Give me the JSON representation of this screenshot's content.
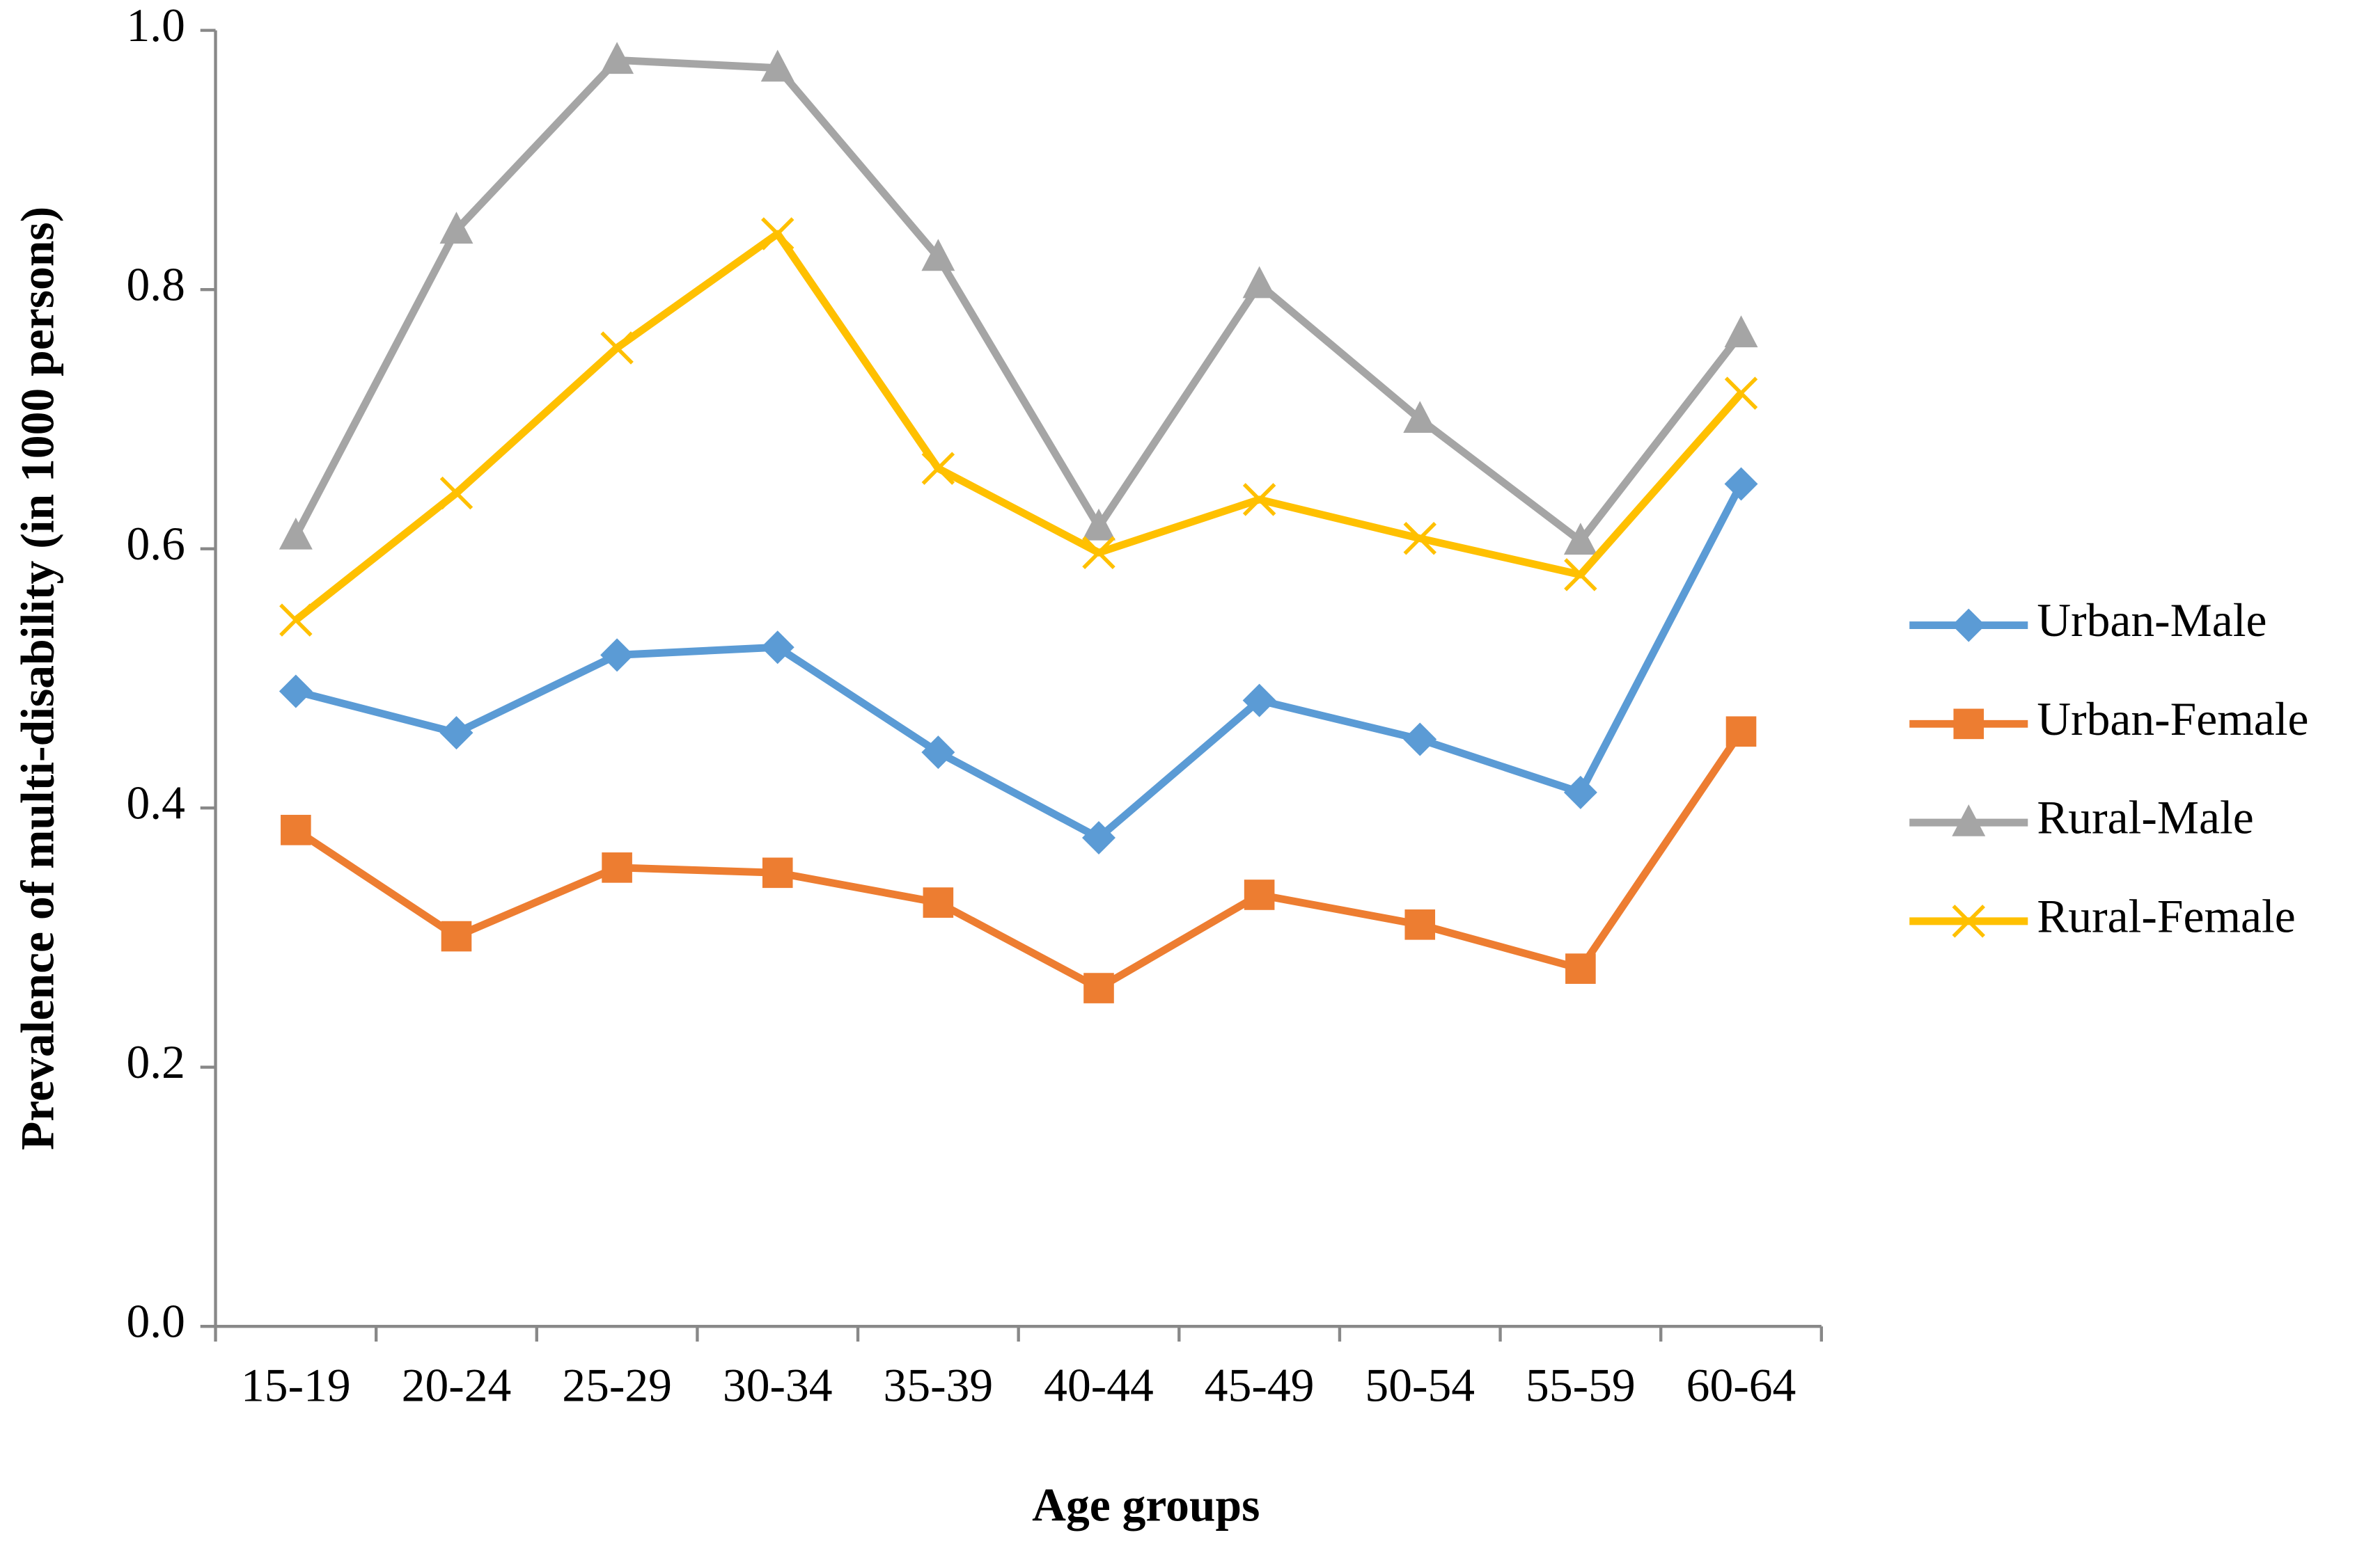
{
  "chart_data": {
    "type": "line",
    "x_label": "Age groups",
    "y_label": "Prevalence of multi-disability (in 1000 persons)",
    "categories": [
      "15-19",
      "20-24",
      "25-29",
      "30-34",
      "35-39",
      "40-44",
      "45-49",
      "50-54",
      "55-59",
      "60-64"
    ],
    "series": [
      {
        "name": "Urban-Male",
        "color": "#5b9bd5",
        "marker": "diamond",
        "values": [
          0.49,
          0.458,
          0.518,
          0.524,
          0.443,
          0.377,
          0.483,
          0.453,
          0.412,
          0.65
        ]
      },
      {
        "name": "Urban-Female",
        "color": "#ed7d31",
        "marker": "square",
        "values": [
          0.383,
          0.301,
          0.354,
          0.35,
          0.327,
          0.261,
          0.333,
          0.31,
          0.276,
          0.459
        ]
      },
      {
        "name": "Rural-Male",
        "color": "#a5a5a5",
        "marker": "triangle",
        "values": [
          0.61,
          0.846,
          0.977,
          0.971,
          0.825,
          0.617,
          0.804,
          0.7,
          0.606,
          0.766
        ]
      },
      {
        "name": "Rural-Female",
        "color": "#ffc000",
        "marker": "x",
        "values": [
          0.545,
          0.643,
          0.755,
          0.843,
          0.662,
          0.597,
          0.638,
          0.608,
          0.58,
          0.72
        ]
      }
    ],
    "ylim": [
      0,
      1
    ],
    "yticks": [
      {
        "value": 0,
        "label": "0.0"
      },
      0.2,
      0.4,
      0.6,
      0.8,
      {
        "value": 1,
        "label": "1.0"
      }
    ],
    "legend": "right"
  }
}
